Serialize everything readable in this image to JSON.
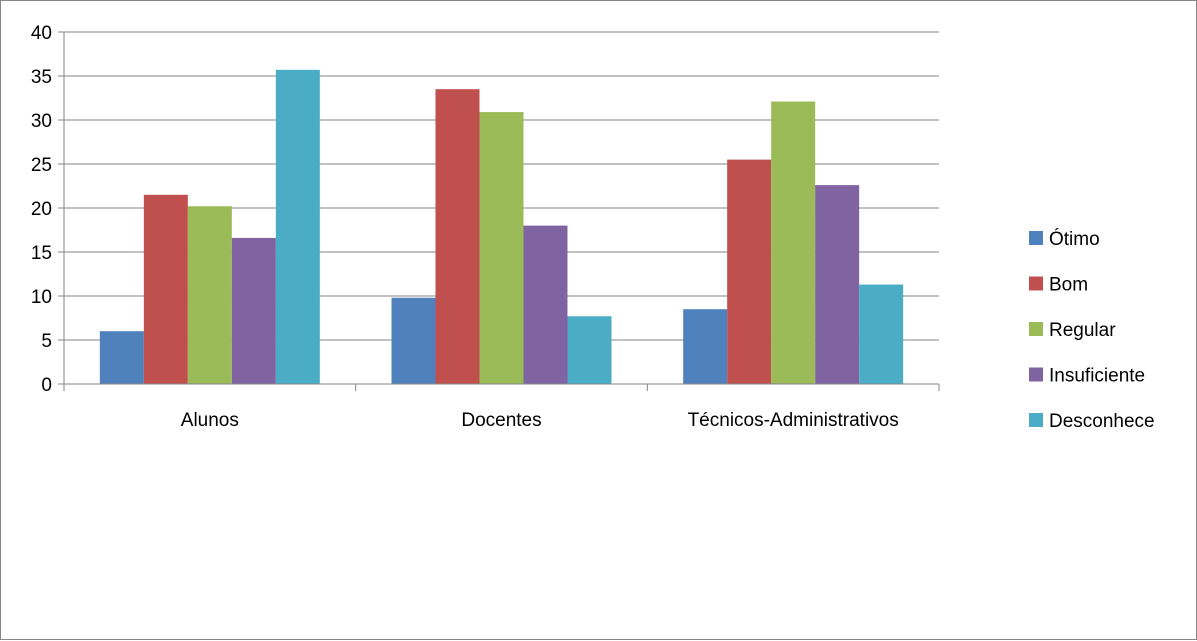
{
  "chart_data": {
    "type": "bar",
    "categories": [
      "Alunos",
      "Docentes",
      "Técnicos-Administrativos"
    ],
    "series": [
      {
        "name": "Ótimo",
        "color": "#4F81BD",
        "values": [
          6,
          9.8,
          8.5
        ]
      },
      {
        "name": "Bom",
        "color": "#C0504D",
        "values": [
          21.5,
          33.5,
          25.5
        ]
      },
      {
        "name": "Regular",
        "color": "#9BBB59",
        "values": [
          20.2,
          30.9,
          32.1
        ]
      },
      {
        "name": "Insuficiente",
        "color": "#8064A2",
        "values": [
          16.6,
          18,
          22.6
        ]
      },
      {
        "name": "Desconhece",
        "color": "#4BACC6",
        "values": [
          35.7,
          7.7,
          11.3
        ]
      }
    ],
    "title": "",
    "xlabel": "",
    "ylabel": "",
    "ylim": [
      0,
      40
    ],
    "yticks": [
      0,
      5,
      10,
      15,
      20,
      25,
      30,
      35,
      40
    ],
    "grid": true,
    "legend": "right"
  }
}
